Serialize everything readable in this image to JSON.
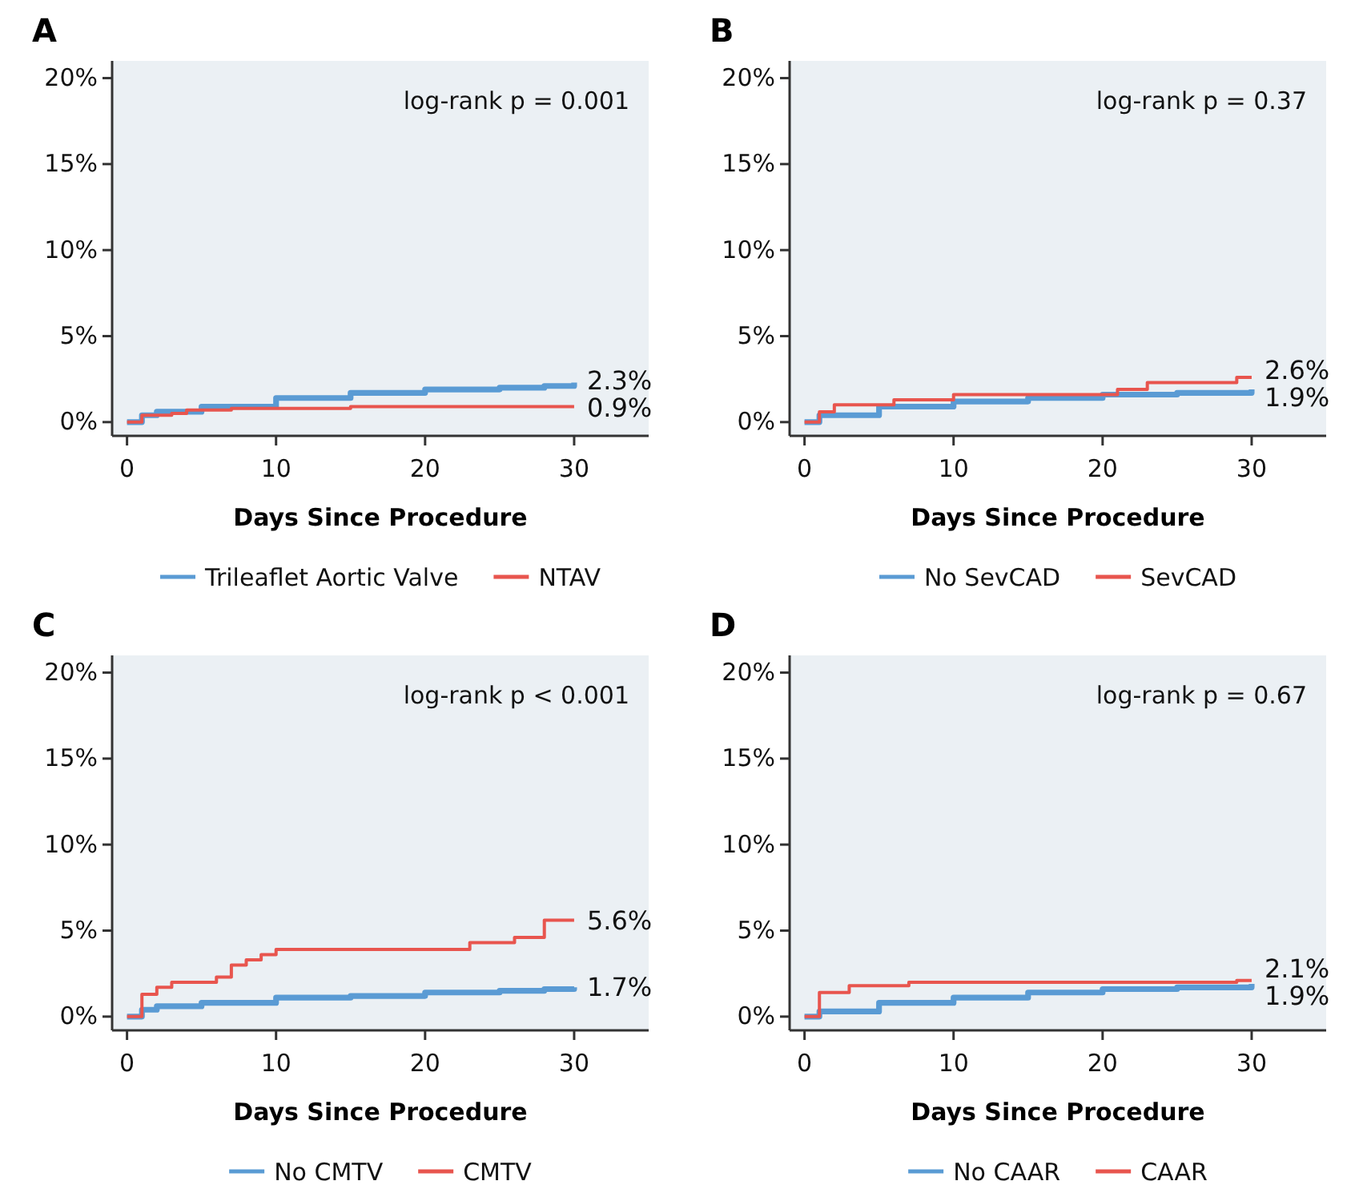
{
  "chart_data": [
    {
      "type": "step",
      "title": "A",
      "xlabel": "Days Since Procedure",
      "xlim": [
        -1,
        35
      ],
      "ylim": [
        -0.8,
        21
      ],
      "xticks": [
        0,
        10,
        20,
        30
      ],
      "yticks": [
        {
          "value": 0,
          "label": "0%"
        },
        {
          "value": 5,
          "label": "5%"
        },
        {
          "value": 10,
          "label": "10%"
        },
        {
          "value": 15,
          "label": "15%"
        },
        {
          "value": 20,
          "label": "20%"
        }
      ],
      "legend": "bottom",
      "grid": false,
      "annotations": [
        "log-rank p = 0.001",
        "2.3%",
        "0.9%"
      ],
      "series": [
        {
          "name": "Trileaflet Aortic Valve",
          "color": "#5a9bd4",
          "x": [
            0,
            1,
            2,
            5,
            10,
            15,
            20,
            25,
            28,
            30
          ],
          "values": [
            0,
            0.4,
            0.6,
            0.9,
            1.4,
            1.7,
            1.9,
            2.0,
            2.1,
            2.3
          ]
        },
        {
          "name": "NTAV",
          "color": "#e8554e",
          "x": [
            0,
            1,
            3,
            4,
            7,
            15,
            30
          ],
          "values": [
            0,
            0.4,
            0.5,
            0.7,
            0.8,
            0.9,
            0.9
          ]
        }
      ]
    },
    {
      "type": "step",
      "title": "B",
      "xlabel": "Days Since Procedure",
      "xlim": [
        -1,
        35
      ],
      "ylim": [
        -0.8,
        21
      ],
      "xticks": [
        0,
        10,
        20,
        30
      ],
      "yticks": [
        {
          "value": 0,
          "label": "0%"
        },
        {
          "value": 5,
          "label": "5%"
        },
        {
          "value": 10,
          "label": "10%"
        },
        {
          "value": 15,
          "label": "15%"
        },
        {
          "value": 20,
          "label": "20%"
        }
      ],
      "legend": "bottom",
      "grid": false,
      "annotations": [
        "log-rank p = 0.37",
        "2.6%",
        "1.9%"
      ],
      "series": [
        {
          "name": "No SevCAD",
          "color": "#5a9bd4",
          "x": [
            0,
            1,
            5,
            10,
            15,
            20,
            25,
            30
          ],
          "values": [
            0,
            0.4,
            0.9,
            1.2,
            1.4,
            1.6,
            1.7,
            1.9
          ]
        },
        {
          "name": "SevCAD",
          "color": "#e8554e",
          "x": [
            0,
            1,
            2,
            6,
            10,
            21,
            23,
            29,
            30
          ],
          "values": [
            0,
            0.6,
            1.0,
            1.3,
            1.6,
            1.9,
            2.3,
            2.6,
            2.6
          ]
        }
      ]
    },
    {
      "type": "step",
      "title": "C",
      "xlabel": "Days Since Procedure",
      "xlim": [
        -1,
        35
      ],
      "ylim": [
        -0.8,
        21
      ],
      "xticks": [
        0,
        10,
        20,
        30
      ],
      "yticks": [
        {
          "value": 0,
          "label": "0%"
        },
        {
          "value": 5,
          "label": "5%"
        },
        {
          "value": 10,
          "label": "10%"
        },
        {
          "value": 15,
          "label": "15%"
        },
        {
          "value": 20,
          "label": "20%"
        }
      ],
      "legend": "bottom",
      "grid": false,
      "annotations": [
        "log-rank p < 0.001",
        "5.6%",
        "1.7%"
      ],
      "series": [
        {
          "name": "No CMTV",
          "color": "#5a9bd4",
          "x": [
            0,
            1,
            2,
            5,
            10,
            15,
            20,
            25,
            28,
            30
          ],
          "values": [
            0,
            0.4,
            0.6,
            0.8,
            1.1,
            1.2,
            1.4,
            1.5,
            1.6,
            1.7
          ]
        },
        {
          "name": "CMTV",
          "color": "#e8554e",
          "x": [
            0,
            1,
            2,
            3,
            6,
            7,
            8,
            9,
            10,
            23,
            26,
            28,
            30
          ],
          "values": [
            0,
            1.3,
            1.7,
            2.0,
            2.3,
            3.0,
            3.3,
            3.6,
            3.9,
            4.3,
            4.6,
            5.6,
            5.6
          ]
        }
      ]
    },
    {
      "type": "step",
      "title": "D",
      "xlabel": "Days Since Procedure",
      "xlim": [
        -1,
        35
      ],
      "ylim": [
        -0.8,
        21
      ],
      "xticks": [
        0,
        10,
        20,
        30
      ],
      "yticks": [
        {
          "value": 0,
          "label": "0%"
        },
        {
          "value": 5,
          "label": "5%"
        },
        {
          "value": 10,
          "label": "10%"
        },
        {
          "value": 15,
          "label": "15%"
        },
        {
          "value": 20,
          "label": "20%"
        }
      ],
      "legend": "bottom",
      "grid": false,
      "annotations": [
        "log-rank p = 0.67",
        "2.1%",
        "1.9%"
      ],
      "series": [
        {
          "name": "No CAAR",
          "color": "#5a9bd4",
          "x": [
            0,
            1,
            5,
            10,
            15,
            20,
            25,
            30
          ],
          "values": [
            0,
            0.3,
            0.8,
            1.1,
            1.4,
            1.6,
            1.7,
            1.9
          ]
        },
        {
          "name": "CAAR",
          "color": "#e8554e",
          "x": [
            0,
            1,
            3,
            7,
            29,
            30
          ],
          "values": [
            0,
            1.4,
            1.8,
            2.0,
            2.1,
            2.1
          ]
        }
      ]
    }
  ]
}
